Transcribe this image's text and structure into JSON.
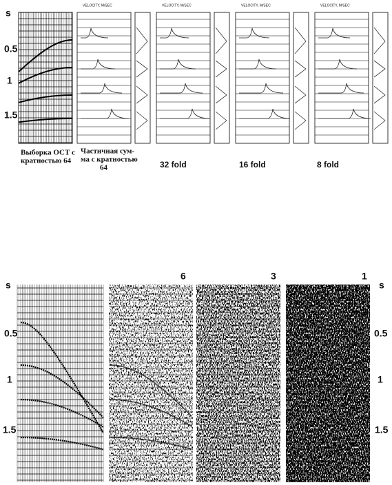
{
  "top_figure": {
    "axis_labels": [
      "s",
      "0.5",
      "1",
      "1.5"
    ],
    "panel_headers": [
      "VELOCITY, M/SEC",
      "VELOCITY, M/SEC",
      "VELOCITY, M/SEC",
      "VELOCITY, M/SEC"
    ],
    "captions": [
      {
        "lines": [
          "Выборка ОСТ с",
          "кратностью 64"
        ]
      },
      {
        "lines": [
          "Частичная сум-",
          "ма с кратностью",
          "64"
        ]
      },
      {
        "lines": [
          "32 fold"
        ]
      },
      {
        "lines": [
          "16 fold"
        ]
      },
      {
        "lines": [
          "8 fold"
        ]
      }
    ]
  },
  "bottom_figure": {
    "left_axis_labels": [
      "s",
      "0.5",
      "1",
      "1.5"
    ],
    "right_axis_labels": [
      "s",
      "0.5",
      "1",
      "1.5"
    ],
    "panel_labels": [
      "6",
      "3",
      "1"
    ]
  }
}
